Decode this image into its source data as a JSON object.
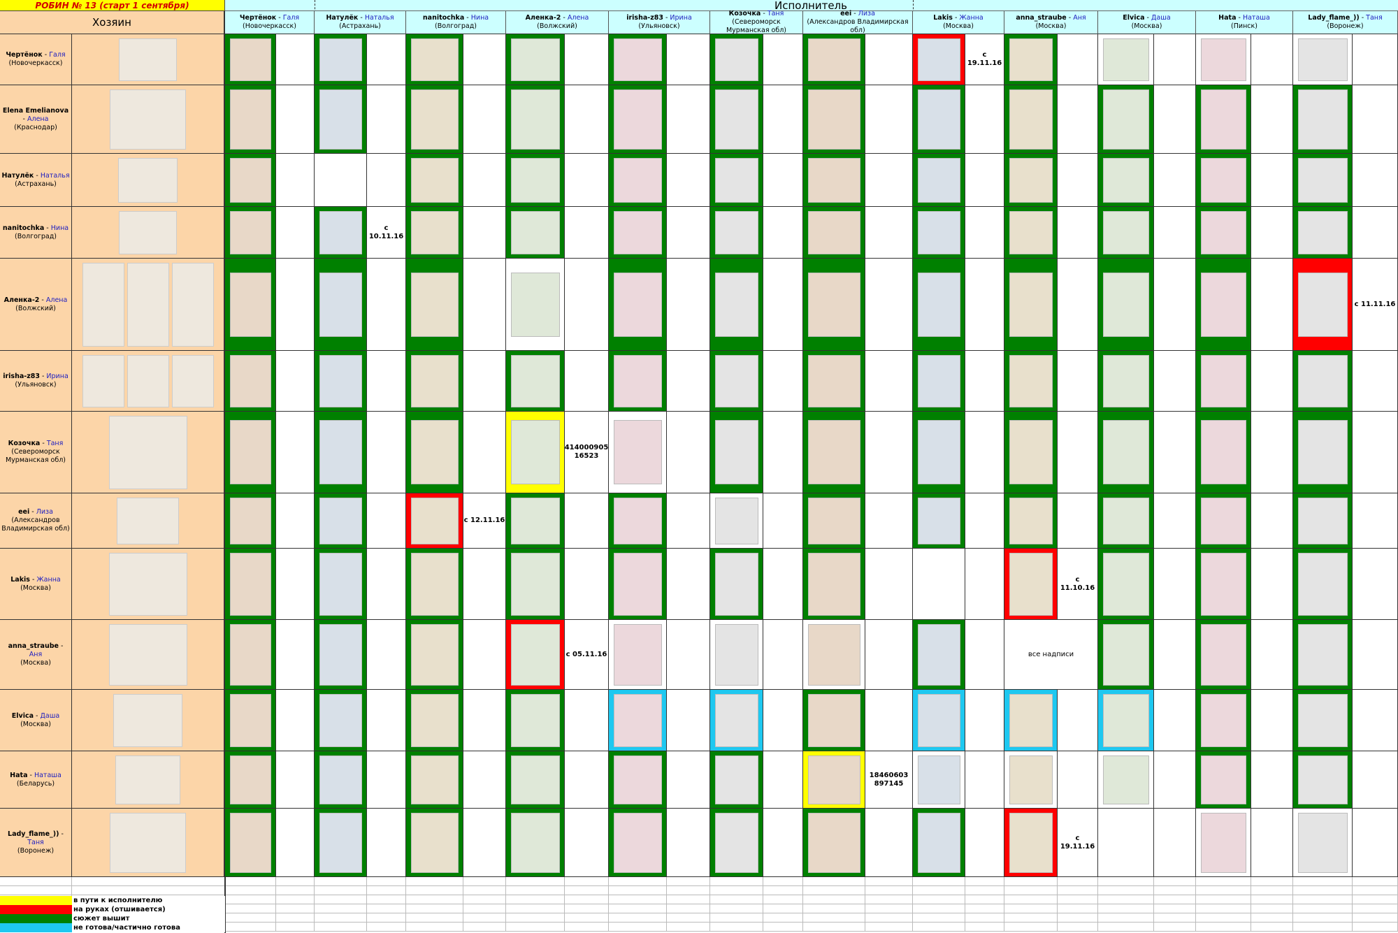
{
  "header": {
    "title": "РОБИН № 13   (старт 1 сентября)",
    "performer_group": "Исполнитель",
    "owner_group": "Хозяин"
  },
  "colors": {
    "done": "#008000",
    "in_hand": "#ff0000",
    "transit": "#ffff00",
    "partial": "#1ec8f0",
    "owner_bg": "#fcd5a8",
    "header_bg": "#ccffff"
  },
  "performers": [
    {
      "nick": "Чертёнок",
      "name": "Галя",
      "city": "(Новочеркасск)"
    },
    {
      "nick": "Натулёк",
      "name": "Наталья",
      "city": "(Астрахань)"
    },
    {
      "nick": "nanitochka",
      "name": "Нина",
      "city": "(Волгоград)"
    },
    {
      "nick": "Аленка-2",
      "name": "Алена",
      "city": "(Волжский)"
    },
    {
      "nick": "irisha-z83",
      "name": "Ирина",
      "city": "(Ульяновск)"
    },
    {
      "nick": "Козочка",
      "name": "Таня",
      "city": "(Североморск Мурманская обл)"
    },
    {
      "nick": "eei",
      "name": "Лиза",
      "city": "(Александров Владимирская обл)"
    },
    {
      "nick": "Lakis",
      "name": "Жанна",
      "city": "(Москва)"
    },
    {
      "nick": "anna_straube",
      "name": "Аня",
      "city": "(Москва)"
    },
    {
      "nick": "Elvica",
      "name": "Даша",
      "city": "(Москва)"
    },
    {
      "nick": "Hata",
      "name": "Наташа",
      "city": "(Пинск)"
    },
    {
      "nick": "Lady_flame_))",
      "name": "Таня",
      "city": "(Воронеж)"
    }
  ],
  "owners": [
    {
      "nick": "Чертёнок",
      "name": "Галя",
      "city": "(Новочеркасск)"
    },
    {
      "nick": "Elena Emelianova",
      "name": "Алена",
      "city": "(Краснодар)"
    },
    {
      "nick": "Натулёк",
      "name": "Наталья",
      "city": "(Астрахань)"
    },
    {
      "nick": "nanitochka",
      "name": "Нина",
      "city": "(Волгоград)"
    },
    {
      "nick": "Аленка-2",
      "name": "Алена",
      "city": "(Волжский)"
    },
    {
      "nick": "irisha-z83",
      "name": "Ирина",
      "city": "(Ульяновск)"
    },
    {
      "nick": "Козочка",
      "name": "Таня",
      "city": "(Североморск Мурманская обл)"
    },
    {
      "nick": "eei",
      "name": "Лиза",
      "city": "(Александров Владимирская обл)"
    },
    {
      "nick": "Lakis",
      "name": "Жанна",
      "city": "(Москва)"
    },
    {
      "nick": "anna_straube",
      "name": "Аня",
      "city": "(Москва)"
    },
    {
      "nick": "Elvica",
      "name": "Даша",
      "city": "(Москва)"
    },
    {
      "nick": "Hata",
      "name": "Наташа",
      "city": "(Беларусь)"
    },
    {
      "nick": "Lady_flame_))",
      "name": "Таня",
      "city": "(Воронеж)"
    }
  ],
  "status_legend_codes": {
    "G": "done",
    "R": "in_hand",
    "Y": "transit",
    "B": "partial",
    "W": "image on white",
    "E": "empty"
  },
  "matrix": [
    [
      "G",
      "G",
      "G",
      "G",
      "G",
      "G",
      "G",
      "R",
      "G",
      "W",
      "W",
      "W"
    ],
    [
      "G",
      "G",
      "G",
      "G",
      "G",
      "G",
      "G",
      "G",
      "G",
      "G",
      "G",
      "G"
    ],
    [
      "G",
      "E",
      "G",
      "G",
      "G",
      "G",
      "G",
      "G",
      "G",
      "G",
      "G",
      "G"
    ],
    [
      "G",
      "G",
      "G",
      "G",
      "G",
      "G",
      "G",
      "G",
      "G",
      "G",
      "G",
      "G"
    ],
    [
      "G",
      "G",
      "G",
      "W",
      "G",
      "G",
      "G",
      "G",
      "G",
      "G",
      "G",
      "R"
    ],
    [
      "G",
      "G",
      "G",
      "G",
      "G",
      "G",
      "G",
      "G",
      "G",
      "G",
      "G",
      "G"
    ],
    [
      "G",
      "G",
      "G",
      "Y",
      "W",
      "G",
      "G",
      "G",
      "G",
      "G",
      "G",
      "G"
    ],
    [
      "G",
      "G",
      "R",
      "G",
      "G",
      "W",
      "G",
      "G",
      "G",
      "G",
      "G",
      "G"
    ],
    [
      "G",
      "G",
      "G",
      "G",
      "G",
      "G",
      "G",
      "E",
      "R",
      "G",
      "G",
      "G"
    ],
    [
      "G",
      "G",
      "G",
      "R",
      "W",
      "W",
      "W",
      "G",
      "E",
      "G",
      "G",
      "G"
    ],
    [
      "G",
      "G",
      "G",
      "G",
      "B",
      "B",
      "G",
      "B",
      "B",
      "B",
      "G",
      "G"
    ],
    [
      "G",
      "G",
      "G",
      "G",
      "G",
      "G",
      "Y",
      "W",
      "W",
      "W",
      "G",
      "G"
    ],
    [
      "G",
      "G",
      "G",
      "G",
      "G",
      "G",
      "G",
      "G",
      "R",
      "E",
      "W",
      "W"
    ]
  ],
  "notes": [
    {
      "row": 0,
      "col": 7,
      "text": "с 19.11.16"
    },
    {
      "row": 3,
      "col": 1,
      "text": "с 10.11.16"
    },
    {
      "row": 4,
      "col": 11,
      "text": "с 11.11.16"
    },
    {
      "row": 6,
      "col": 3,
      "text": "414000905 16523"
    },
    {
      "row": 7,
      "col": 2,
      "text": "с 12.11.16"
    },
    {
      "row": 8,
      "col": 8,
      "text": "с 11.10.16"
    },
    {
      "row": 9,
      "col": 3,
      "text": "с 05.11.16"
    },
    {
      "row": 9,
      "col": 8,
      "text": "все надписи",
      "center": true
    },
    {
      "row": 11,
      "col": 6,
      "text": "18460603 897145"
    },
    {
      "row": 12,
      "col": 8,
      "text": "с 19.11.16"
    }
  ],
  "legend": [
    {
      "color": "#ffff00",
      "label": "в пути к исполнителю"
    },
    {
      "color": "#ff0000",
      "label": "на руках (отшивается)"
    },
    {
      "color": "#008000",
      "label": "сюжет вышит"
    },
    {
      "color": "#1ec8f0",
      "label": "не готова/частично готова"
    }
  ]
}
